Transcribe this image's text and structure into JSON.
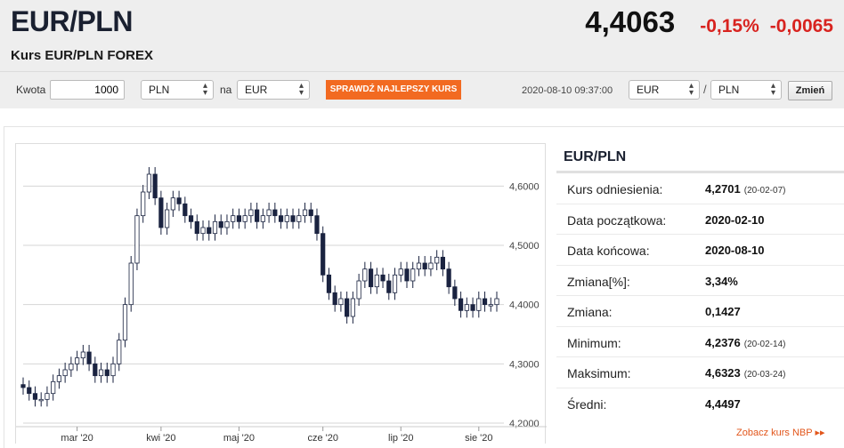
{
  "header": {
    "pair": "EUR/PLN",
    "subtitle": "Kurs EUR/PLN FOREX",
    "price": "4,4063",
    "change_pct": "-0,15%",
    "change_abs": "-0,0065"
  },
  "converter": {
    "amount_label": "Kwota",
    "amount_value": "1000",
    "from_currency": "PLN",
    "na_label": "na",
    "to_currency": "EUR",
    "check_button": "SPRAWDŹ NAJLEPSZY KURS",
    "timestamp": "2020-08-10 09:37:00",
    "pair_base": "EUR",
    "slash": "/",
    "pair_quote": "PLN",
    "change_button": "Zmień"
  },
  "stats": {
    "title": "EUR/PLN",
    "rows": [
      {
        "label": "Kurs odniesienia:",
        "value": "4,2701",
        "date": "(20-02-07)"
      },
      {
        "label": "Data początkowa:",
        "value": "2020-02-10",
        "date": ""
      },
      {
        "label": "Data końcowa:",
        "value": "2020-08-10",
        "date": ""
      },
      {
        "label": "Zmiana[%]:",
        "value": "3,34%",
        "date": ""
      },
      {
        "label": "Zmiana:",
        "value": "0,1427",
        "date": ""
      },
      {
        "label": "Minimum:",
        "value": "4,2376",
        "date": "(20-02-14)"
      },
      {
        "label": "Maksimum:",
        "value": "4,6323",
        "date": "(20-03-24)"
      },
      {
        "label": "Średni:",
        "value": "4,4497",
        "date": ""
      }
    ],
    "nbp_link": "Zobacz kurs NBP ▸▸"
  },
  "colors": {
    "accent": "#f26a21",
    "down": "#d8231f",
    "candle_down": "#1a2340"
  },
  "chart_data": {
    "type": "candlestick",
    "x_tick_labels": [
      "mar '20",
      "kwi '20",
      "maj '20",
      "cze '20",
      "lip '20",
      "sie '20"
    ],
    "y_tick_labels": [
      "4,2000",
      "4,3000",
      "4,4000",
      "4,5000",
      "4,6000"
    ],
    "ylim": [
      4.2,
      4.65
    ],
    "close_series": [
      4.26,
      4.25,
      4.24,
      4.24,
      4.25,
      4.27,
      4.28,
      4.29,
      4.3,
      4.31,
      4.32,
      4.3,
      4.28,
      4.29,
      4.28,
      4.3,
      4.34,
      4.4,
      4.47,
      4.55,
      4.59,
      4.62,
      4.58,
      4.53,
      4.56,
      4.58,
      4.57,
      4.55,
      4.54,
      4.52,
      4.53,
      4.52,
      4.54,
      4.53,
      4.54,
      4.55,
      4.54,
      4.55,
      4.56,
      4.54,
      4.55,
      4.56,
      4.55,
      4.54,
      4.55,
      4.54,
      4.55,
      4.56,
      4.55,
      4.52,
      4.45,
      4.42,
      4.4,
      4.41,
      4.38,
      4.41,
      4.44,
      4.46,
      4.43,
      4.45,
      4.44,
      4.42,
      4.45,
      4.46,
      4.44,
      4.46,
      4.47,
      4.46,
      4.47,
      4.48,
      4.46,
      4.43,
      4.41,
      4.39,
      4.4,
      4.39,
      4.41,
      4.4,
      4.4,
      4.41
    ]
  }
}
